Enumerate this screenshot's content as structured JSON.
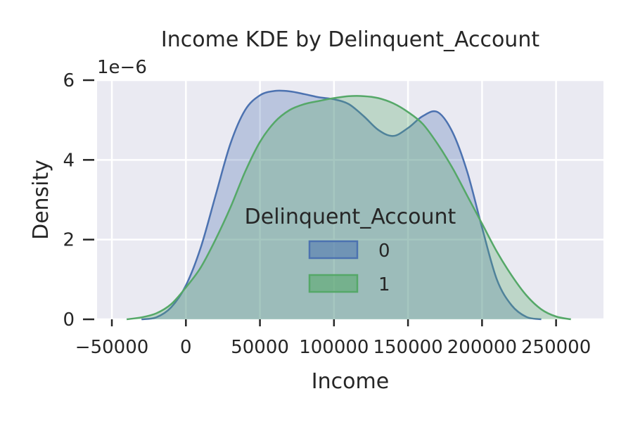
{
  "chart_data": {
    "type": "area",
    "title": "Income KDE by Delinquent_Account",
    "xlabel": "Income",
    "ylabel": "Density",
    "y_offset_label": "1e−6",
    "y_multiplier": 1e-06,
    "xlim": [
      -60000,
      282000
    ],
    "ylim": [
      0,
      6
    ],
    "x_ticks": [
      -50000,
      0,
      50000,
      100000,
      150000,
      200000,
      250000
    ],
    "x_tick_labels": [
      "−50000",
      "0",
      "50000",
      "100000",
      "150000",
      "200000",
      "250000"
    ],
    "y_ticks": [
      0,
      2,
      4,
      6
    ],
    "y_tick_labels": [
      "0",
      "2",
      "4",
      "6"
    ],
    "grid": true,
    "legend": {
      "title": "Delinquent_Account",
      "placement": "center"
    },
    "series": [
      {
        "name": "0",
        "color": "#4c72b0",
        "x": [
          -30000,
          -20000,
          -10000,
          0,
          10000,
          20000,
          30000,
          40000,
          50000,
          60000,
          70000,
          80000,
          90000,
          100000,
          110000,
          120000,
          130000,
          140000,
          150000,
          160000,
          170000,
          180000,
          190000,
          200000,
          210000,
          220000,
          230000,
          240000
        ],
        "y": [
          0.0,
          0.05,
          0.3,
          0.85,
          1.8,
          3.1,
          4.4,
          5.25,
          5.62,
          5.73,
          5.72,
          5.65,
          5.57,
          5.52,
          5.4,
          5.1,
          4.75,
          4.6,
          4.8,
          5.1,
          5.2,
          4.7,
          3.7,
          2.3,
          1.0,
          0.35,
          0.06,
          0.0
        ]
      },
      {
        "name": "1",
        "color": "#55a868",
        "x": [
          -40000,
          -30000,
          -20000,
          -10000,
          0,
          10000,
          20000,
          30000,
          40000,
          50000,
          60000,
          70000,
          80000,
          90000,
          100000,
          110000,
          120000,
          130000,
          140000,
          150000,
          160000,
          170000,
          180000,
          190000,
          200000,
          210000,
          220000,
          230000,
          240000,
          250000,
          260000
        ],
        "y": [
          0.0,
          0.05,
          0.15,
          0.38,
          0.8,
          1.3,
          2.0,
          2.8,
          3.7,
          4.45,
          4.95,
          5.25,
          5.4,
          5.48,
          5.55,
          5.6,
          5.6,
          5.55,
          5.42,
          5.2,
          4.9,
          4.4,
          3.8,
          3.1,
          2.4,
          1.7,
          1.1,
          0.6,
          0.25,
          0.07,
          0.0
        ]
      }
    ]
  }
}
